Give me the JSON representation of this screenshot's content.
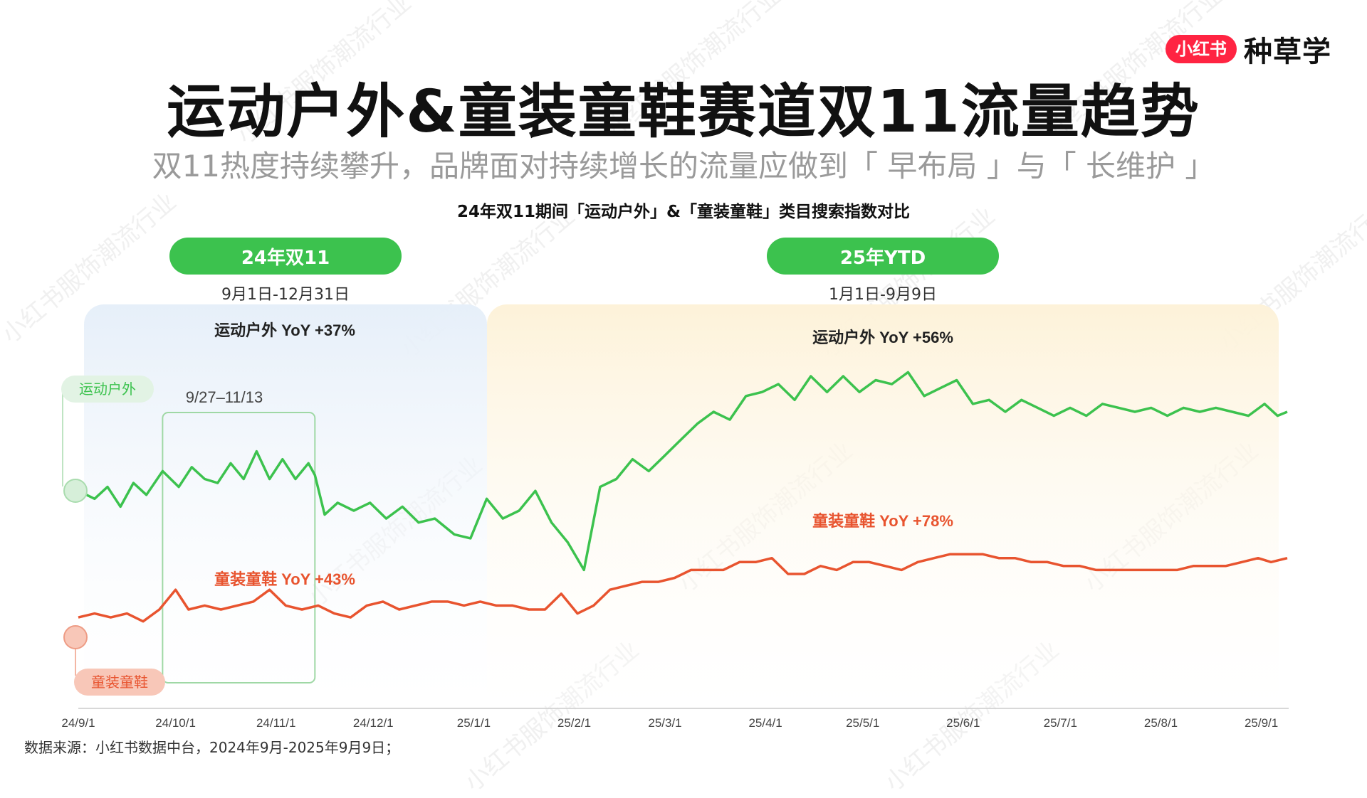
{
  "brand": {
    "badge": "小红书",
    "name": "种草学"
  },
  "title": "运动户外&童装童鞋赛道双11流量趋势",
  "subtitle": "双11热度持续攀升，品牌面对持续增长的流量应做到「 早布局 」与「 长维护 」",
  "watermark_text": "小红书服饰潮流行业",
  "source": "数据来源：小红书数据中台，2024年9月-2025年9月9日；",
  "periods": [
    {
      "label": "24年双11",
      "dates": "9月1日-12月31日"
    },
    {
      "label": "25年YTD",
      "dates": "1月1日-9月9日"
    }
  ],
  "colors": {
    "outdoor": "#3cc24e",
    "kids": "#e8542f",
    "period1_bg": "#eaf2fb",
    "period2_bg": "#fdf5e2",
    "pill": "#3cc24e"
  },
  "chart_data": {
    "type": "line",
    "title": "24年双11期间「运动户外」&「童装童鞋」类目搜索指数对比",
    "x_tick_labels": [
      "24/9/1",
      "24/10/1",
      "24/11/1",
      "24/12/1",
      "25/1/1",
      "25/2/1",
      "25/3/1",
      "25/4/1",
      "25/5/1",
      "25/6/1",
      "25/7/1",
      "25/8/1",
      "25/9/1"
    ],
    "x_range": [
      "2024-09-01",
      "2025-09-09"
    ],
    "ylim": [
      0,
      100
    ],
    "series": [
      {
        "name": "运动户外",
        "color": "#3cc24e",
        "points": [
          [
            "2024-09-01",
            55
          ],
          [
            "2024-09-06",
            53
          ],
          [
            "2024-09-10",
            56
          ],
          [
            "2024-09-14",
            51
          ],
          [
            "2024-09-18",
            57
          ],
          [
            "2024-09-22",
            54
          ],
          [
            "2024-09-27",
            60
          ],
          [
            "2024-10-02",
            56
          ],
          [
            "2024-10-06",
            61
          ],
          [
            "2024-10-10",
            58
          ],
          [
            "2024-10-14",
            57
          ],
          [
            "2024-10-18",
            62
          ],
          [
            "2024-10-22",
            58
          ],
          [
            "2024-10-26",
            65
          ],
          [
            "2024-10-30",
            58
          ],
          [
            "2024-11-03",
            63
          ],
          [
            "2024-11-07",
            58
          ],
          [
            "2024-11-11",
            62
          ],
          [
            "2024-11-13",
            59
          ],
          [
            "2024-11-16",
            49
          ],
          [
            "2024-11-20",
            52
          ],
          [
            "2024-11-25",
            50
          ],
          [
            "2024-11-30",
            52
          ],
          [
            "2024-12-05",
            48
          ],
          [
            "2024-12-10",
            51
          ],
          [
            "2024-12-15",
            47
          ],
          [
            "2024-12-20",
            48
          ],
          [
            "2024-12-26",
            44
          ],
          [
            "2024-12-31",
            43
          ],
          [
            "2025-01-05",
            53
          ],
          [
            "2025-01-10",
            48
          ],
          [
            "2025-01-15",
            50
          ],
          [
            "2025-01-20",
            55
          ],
          [
            "2025-01-25",
            47
          ],
          [
            "2025-01-30",
            42
          ],
          [
            "2025-02-04",
            35
          ],
          [
            "2025-02-09",
            56
          ],
          [
            "2025-02-14",
            58
          ],
          [
            "2025-02-19",
            63
          ],
          [
            "2025-02-24",
            60
          ],
          [
            "2025-03-01",
            64
          ],
          [
            "2025-03-06",
            68
          ],
          [
            "2025-03-11",
            72
          ],
          [
            "2025-03-16",
            75
          ],
          [
            "2025-03-21",
            73
          ],
          [
            "2025-03-26",
            79
          ],
          [
            "2025-03-31",
            80
          ],
          [
            "2025-04-05",
            82
          ],
          [
            "2025-04-10",
            78
          ],
          [
            "2025-04-15",
            84
          ],
          [
            "2025-04-20",
            80
          ],
          [
            "2025-04-25",
            84
          ],
          [
            "2025-04-30",
            80
          ],
          [
            "2025-05-05",
            83
          ],
          [
            "2025-05-10",
            82
          ],
          [
            "2025-05-15",
            85
          ],
          [
            "2025-05-20",
            79
          ],
          [
            "2025-05-25",
            81
          ],
          [
            "2025-05-30",
            83
          ],
          [
            "2025-06-04",
            77
          ],
          [
            "2025-06-09",
            78
          ],
          [
            "2025-06-14",
            75
          ],
          [
            "2025-06-19",
            78
          ],
          [
            "2025-06-24",
            76
          ],
          [
            "2025-06-29",
            74
          ],
          [
            "2025-07-04",
            76
          ],
          [
            "2025-07-09",
            74
          ],
          [
            "2025-07-14",
            77
          ],
          [
            "2025-07-19",
            76
          ],
          [
            "2025-07-24",
            75
          ],
          [
            "2025-07-29",
            76
          ],
          [
            "2025-08-03",
            74
          ],
          [
            "2025-08-08",
            76
          ],
          [
            "2025-08-13",
            75
          ],
          [
            "2025-08-18",
            76
          ],
          [
            "2025-08-23",
            75
          ],
          [
            "2025-08-28",
            74
          ],
          [
            "2025-09-02",
            77
          ],
          [
            "2025-09-06",
            74
          ],
          [
            "2025-09-09",
            75
          ]
        ]
      },
      {
        "name": "童装童鞋",
        "color": "#e8542f",
        "points": [
          [
            "2024-09-01",
            23
          ],
          [
            "2024-09-06",
            24
          ],
          [
            "2024-09-11",
            23
          ],
          [
            "2024-09-16",
            24
          ],
          [
            "2024-09-21",
            22
          ],
          [
            "2024-09-26",
            25
          ],
          [
            "2024-10-01",
            30
          ],
          [
            "2024-10-05",
            25
          ],
          [
            "2024-10-10",
            26
          ],
          [
            "2024-10-15",
            25
          ],
          [
            "2024-10-20",
            26
          ],
          [
            "2024-10-25",
            27
          ],
          [
            "2024-10-30",
            30
          ],
          [
            "2024-11-04",
            26
          ],
          [
            "2024-11-09",
            25
          ],
          [
            "2024-11-14",
            26
          ],
          [
            "2024-11-19",
            24
          ],
          [
            "2024-11-24",
            23
          ],
          [
            "2024-11-29",
            26
          ],
          [
            "2024-12-04",
            27
          ],
          [
            "2024-12-09",
            25
          ],
          [
            "2024-12-14",
            26
          ],
          [
            "2024-12-19",
            27
          ],
          [
            "2024-12-24",
            27
          ],
          [
            "2024-12-29",
            26
          ],
          [
            "2025-01-03",
            27
          ],
          [
            "2025-01-08",
            26
          ],
          [
            "2025-01-13",
            26
          ],
          [
            "2025-01-18",
            25
          ],
          [
            "2025-01-23",
            25
          ],
          [
            "2025-01-28",
            29
          ],
          [
            "2025-02-02",
            24
          ],
          [
            "2025-02-07",
            26
          ],
          [
            "2025-02-12",
            30
          ],
          [
            "2025-02-17",
            31
          ],
          [
            "2025-02-22",
            32
          ],
          [
            "2025-02-27",
            32
          ],
          [
            "2025-03-04",
            33
          ],
          [
            "2025-03-09",
            35
          ],
          [
            "2025-03-14",
            35
          ],
          [
            "2025-03-19",
            35
          ],
          [
            "2025-03-24",
            37
          ],
          [
            "2025-03-29",
            37
          ],
          [
            "2025-04-03",
            38
          ],
          [
            "2025-04-08",
            34
          ],
          [
            "2025-04-13",
            34
          ],
          [
            "2025-04-18",
            36
          ],
          [
            "2025-04-23",
            35
          ],
          [
            "2025-04-28",
            37
          ],
          [
            "2025-05-03",
            37
          ],
          [
            "2025-05-08",
            36
          ],
          [
            "2025-05-13",
            35
          ],
          [
            "2025-05-18",
            37
          ],
          [
            "2025-05-23",
            38
          ],
          [
            "2025-05-28",
            39
          ],
          [
            "2025-06-02",
            39
          ],
          [
            "2025-06-07",
            39
          ],
          [
            "2025-06-12",
            38
          ],
          [
            "2025-06-17",
            38
          ],
          [
            "2025-06-22",
            37
          ],
          [
            "2025-06-27",
            37
          ],
          [
            "2025-07-02",
            36
          ],
          [
            "2025-07-07",
            36
          ],
          [
            "2025-07-12",
            35
          ],
          [
            "2025-07-17",
            35
          ],
          [
            "2025-07-22",
            35
          ],
          [
            "2025-07-27",
            35
          ],
          [
            "2025-08-01",
            35
          ],
          [
            "2025-08-06",
            35
          ],
          [
            "2025-08-11",
            36
          ],
          [
            "2025-08-16",
            36
          ],
          [
            "2025-08-21",
            36
          ],
          [
            "2025-08-26",
            37
          ],
          [
            "2025-08-31",
            38
          ],
          [
            "2025-09-04",
            37
          ],
          [
            "2025-09-09",
            38
          ]
        ]
      }
    ],
    "annotations": [
      {
        "id": "outdoor_yoy_24",
        "text": "运动户外 YoY +37%",
        "series": "运动户外",
        "period": "24年双11"
      },
      {
        "id": "kids_yoy_24",
        "text": "童装童鞋 YoY +43%",
        "series": "童装童鞋",
        "period": "24年双11"
      },
      {
        "id": "outdoor_yoy_25",
        "text": "运动户外 YoY +56%",
        "series": "运动户外",
        "period": "25年YTD"
      },
      {
        "id": "kids_yoy_25",
        "text": "童装童鞋 YoY +78%",
        "series": "童装童鞋",
        "period": "25年YTD"
      },
      {
        "id": "highlight",
        "text": "9/27–11/13",
        "range": [
          "2024-09-27",
          "2024-11-13"
        ]
      }
    ],
    "legend": {
      "placement": "left",
      "entries": [
        "运动户外",
        "童装童鞋"
      ]
    },
    "grid": false
  }
}
